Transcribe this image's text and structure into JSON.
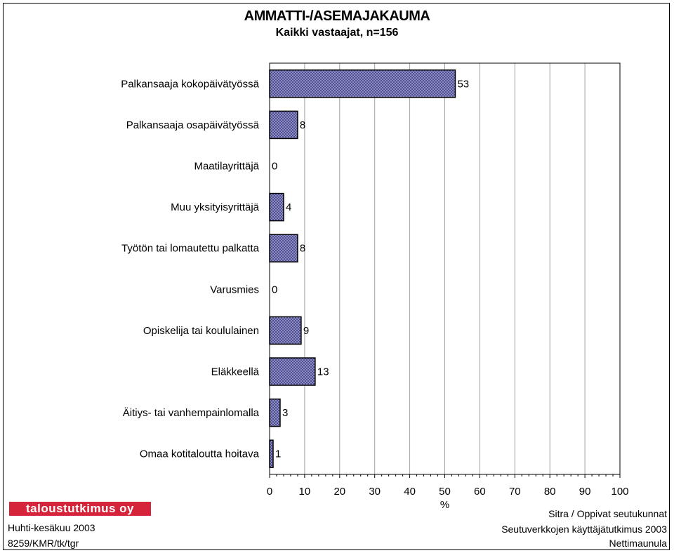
{
  "chart_data": {
    "type": "bar",
    "orientation": "horizontal",
    "title": "AMMATTI-/ASEMAJAKAUMA",
    "subtitle": "Kaikki vastaajat, n=156",
    "categories": [
      "Palkansaaja kokopäivätyössä",
      "Palkansaaja osapäivätyössä",
      "Maatilayrittäjä",
      "Muu yksityisyrittäjä",
      "Työtön tai lomautettu palkatta",
      "Varusmies",
      "Opiskelija tai koululainen",
      "Eläkkeellä",
      "Äitiys- tai vanhempainlomalla",
      "Omaa kotitaloutta hoitava"
    ],
    "values": [
      53,
      8,
      0,
      4,
      8,
      0,
      9,
      13,
      3,
      1
    ],
    "xlabel": "%",
    "ylabel": "",
    "xlim": [
      0,
      100
    ],
    "xticks": [
      0,
      10,
      20,
      30,
      40,
      50,
      60,
      70,
      80,
      90,
      100
    ],
    "grid": true
  },
  "colors": {
    "bar_fill": "#8c8cc6",
    "bar_pattern": "#1e1e60",
    "grid": "#a0a0a0",
    "logo_bg": "#d6253a"
  },
  "footer": {
    "logo_text": "taloustutkimus oy",
    "left_line1": "Huhti-kesäkuu 2003",
    "left_line2": "8259/KMR/tk/tgr",
    "right_line1": "Sitra / Oppivat seutukunnat",
    "right_line2": "Seutuverkkojen käyttäjätutkimus 2003",
    "right_line3": "Nettimaunula"
  }
}
